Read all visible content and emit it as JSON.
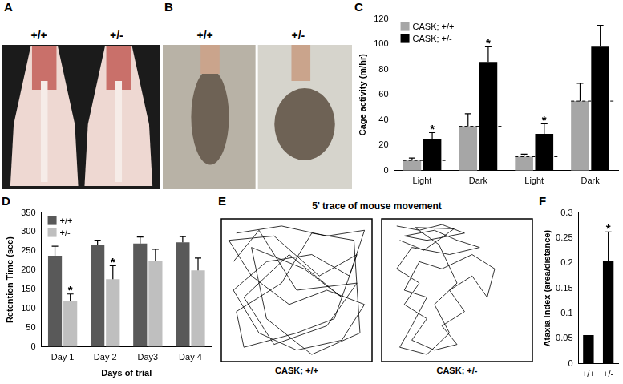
{
  "photos": [
    {
      "panel": "A",
      "labels": [
        "+/+",
        "+/-"
      ]
    },
    {
      "panel": "B",
      "labels": [
        "+/+",
        "+/-"
      ]
    }
  ],
  "chart_data": [
    {
      "panel": "C",
      "type": "bar",
      "y_label": "Cage activity (m/hr)",
      "categories": [
        "Light",
        "Dark",
        "Light",
        "Dark"
      ],
      "series": [
        {
          "name": "CASK; +/+",
          "color": "#a6a6a6",
          "values": [
            8,
            35,
            11,
            55
          ],
          "errors": [
            2,
            10,
            2,
            14
          ],
          "line_style": "dashed"
        },
        {
          "name": "CASK; +/-",
          "color": "#000000",
          "values": [
            25,
            86,
            29,
            98
          ],
          "errors": [
            5,
            12,
            8,
            17
          ],
          "annotations": [
            "*",
            "*",
            "*",
            null
          ]
        }
      ],
      "ylim": [
        0,
        120
      ],
      "yticks": [
        0,
        20,
        40,
        60,
        80,
        100,
        120
      ],
      "grid": false,
      "legend": "upper left"
    },
    {
      "panel": "D",
      "type": "bar",
      "y_label": "Retention Time (sec)",
      "x_label": "Days of trial",
      "categories": [
        "Day 1",
        "Day 2",
        "Day3",
        "Day 4"
      ],
      "series": [
        {
          "name": "+/+",
          "color": "#595959",
          "values": [
            238,
            267,
            270,
            273
          ],
          "errors": [
            25,
            12,
            17,
            15
          ]
        },
        {
          "name": "+/-",
          "color": "#bfbfbf",
          "values": [
            120,
            177,
            225,
            200
          ],
          "errors": [
            18,
            35,
            30,
            32
          ],
          "annotations": [
            "*",
            "*",
            null,
            null
          ]
        }
      ],
      "ylim": [
        0,
        350
      ],
      "yticks": [
        0,
        50,
        100,
        150,
        200,
        250,
        300,
        350
      ],
      "grid": false,
      "legend": "upper left"
    },
    {
      "panel": "E",
      "type": "line",
      "title": "5' trace of mouse movement",
      "series": [
        {
          "name": "CASK; +/+",
          "color": "#000000",
          "x": [
            10,
            40,
            70,
            95,
            85,
            60,
            30,
            8,
            25,
            50,
            80,
            95,
            70,
            45,
            20,
            5,
            35,
            65,
            90,
            75,
            50,
            15,
            10,
            40,
            60,
            88,
            92,
            60,
            30,
            20,
            55,
            80,
            45,
            15,
            35,
            70,
            90,
            50,
            25,
            8
          ],
          "values": [
            90,
            95,
            88,
            92,
            60,
            75,
            70,
            50,
            20,
            8,
            15,
            40,
            50,
            40,
            60,
            85,
            88,
            60,
            75,
            30,
            20,
            10,
            35,
            55,
            90,
            85,
            20,
            5,
            30,
            80,
            65,
            45,
            75,
            45,
            12,
            25,
            55,
            50,
            92,
            70
          ]
        },
        {
          "name": "CASK; +/-",
          "color": "#000000",
          "x": [
            10,
            25,
            40,
            55,
            30,
            15,
            35,
            50,
            65,
            45,
            20,
            10,
            25,
            15,
            30,
            20,
            35,
            50,
            40,
            55,
            45,
            60,
            70,
            75,
            60,
            40,
            25,
            15,
            30,
            20,
            12,
            30,
            45,
            35,
            50,
            38,
            22,
            48,
            28,
            12
          ],
          "values": [
            95,
            92,
            96,
            90,
            85,
            88,
            92,
            85,
            80,
            75,
            80,
            65,
            55,
            40,
            30,
            15,
            8,
            12,
            25,
            35,
            50,
            60,
            45,
            65,
            75,
            65,
            70,
            50,
            45,
            25,
            10,
            5,
            20,
            40,
            55,
            82,
            94,
            93,
            78,
            85
          ]
        }
      ],
      "xlim": [
        0,
        100
      ],
      "ylim": [
        0,
        100
      ],
      "tick_labels": false,
      "grid": false
    },
    {
      "panel": "F",
      "type": "bar",
      "y_label": "Ataxia Index (area/distance)",
      "categories": [
        "+/+",
        "+/-"
      ],
      "values": [
        0.057,
        0.205
      ],
      "errors": [
        0,
        0.057
      ],
      "annotations": [
        null,
        "*"
      ],
      "color": "#000000",
      "ylim": [
        0,
        0.3
      ],
      "yticks": [
        0,
        0.05,
        0.1,
        0.15,
        0.2,
        0.25,
        0.3
      ],
      "grid": false
    }
  ]
}
